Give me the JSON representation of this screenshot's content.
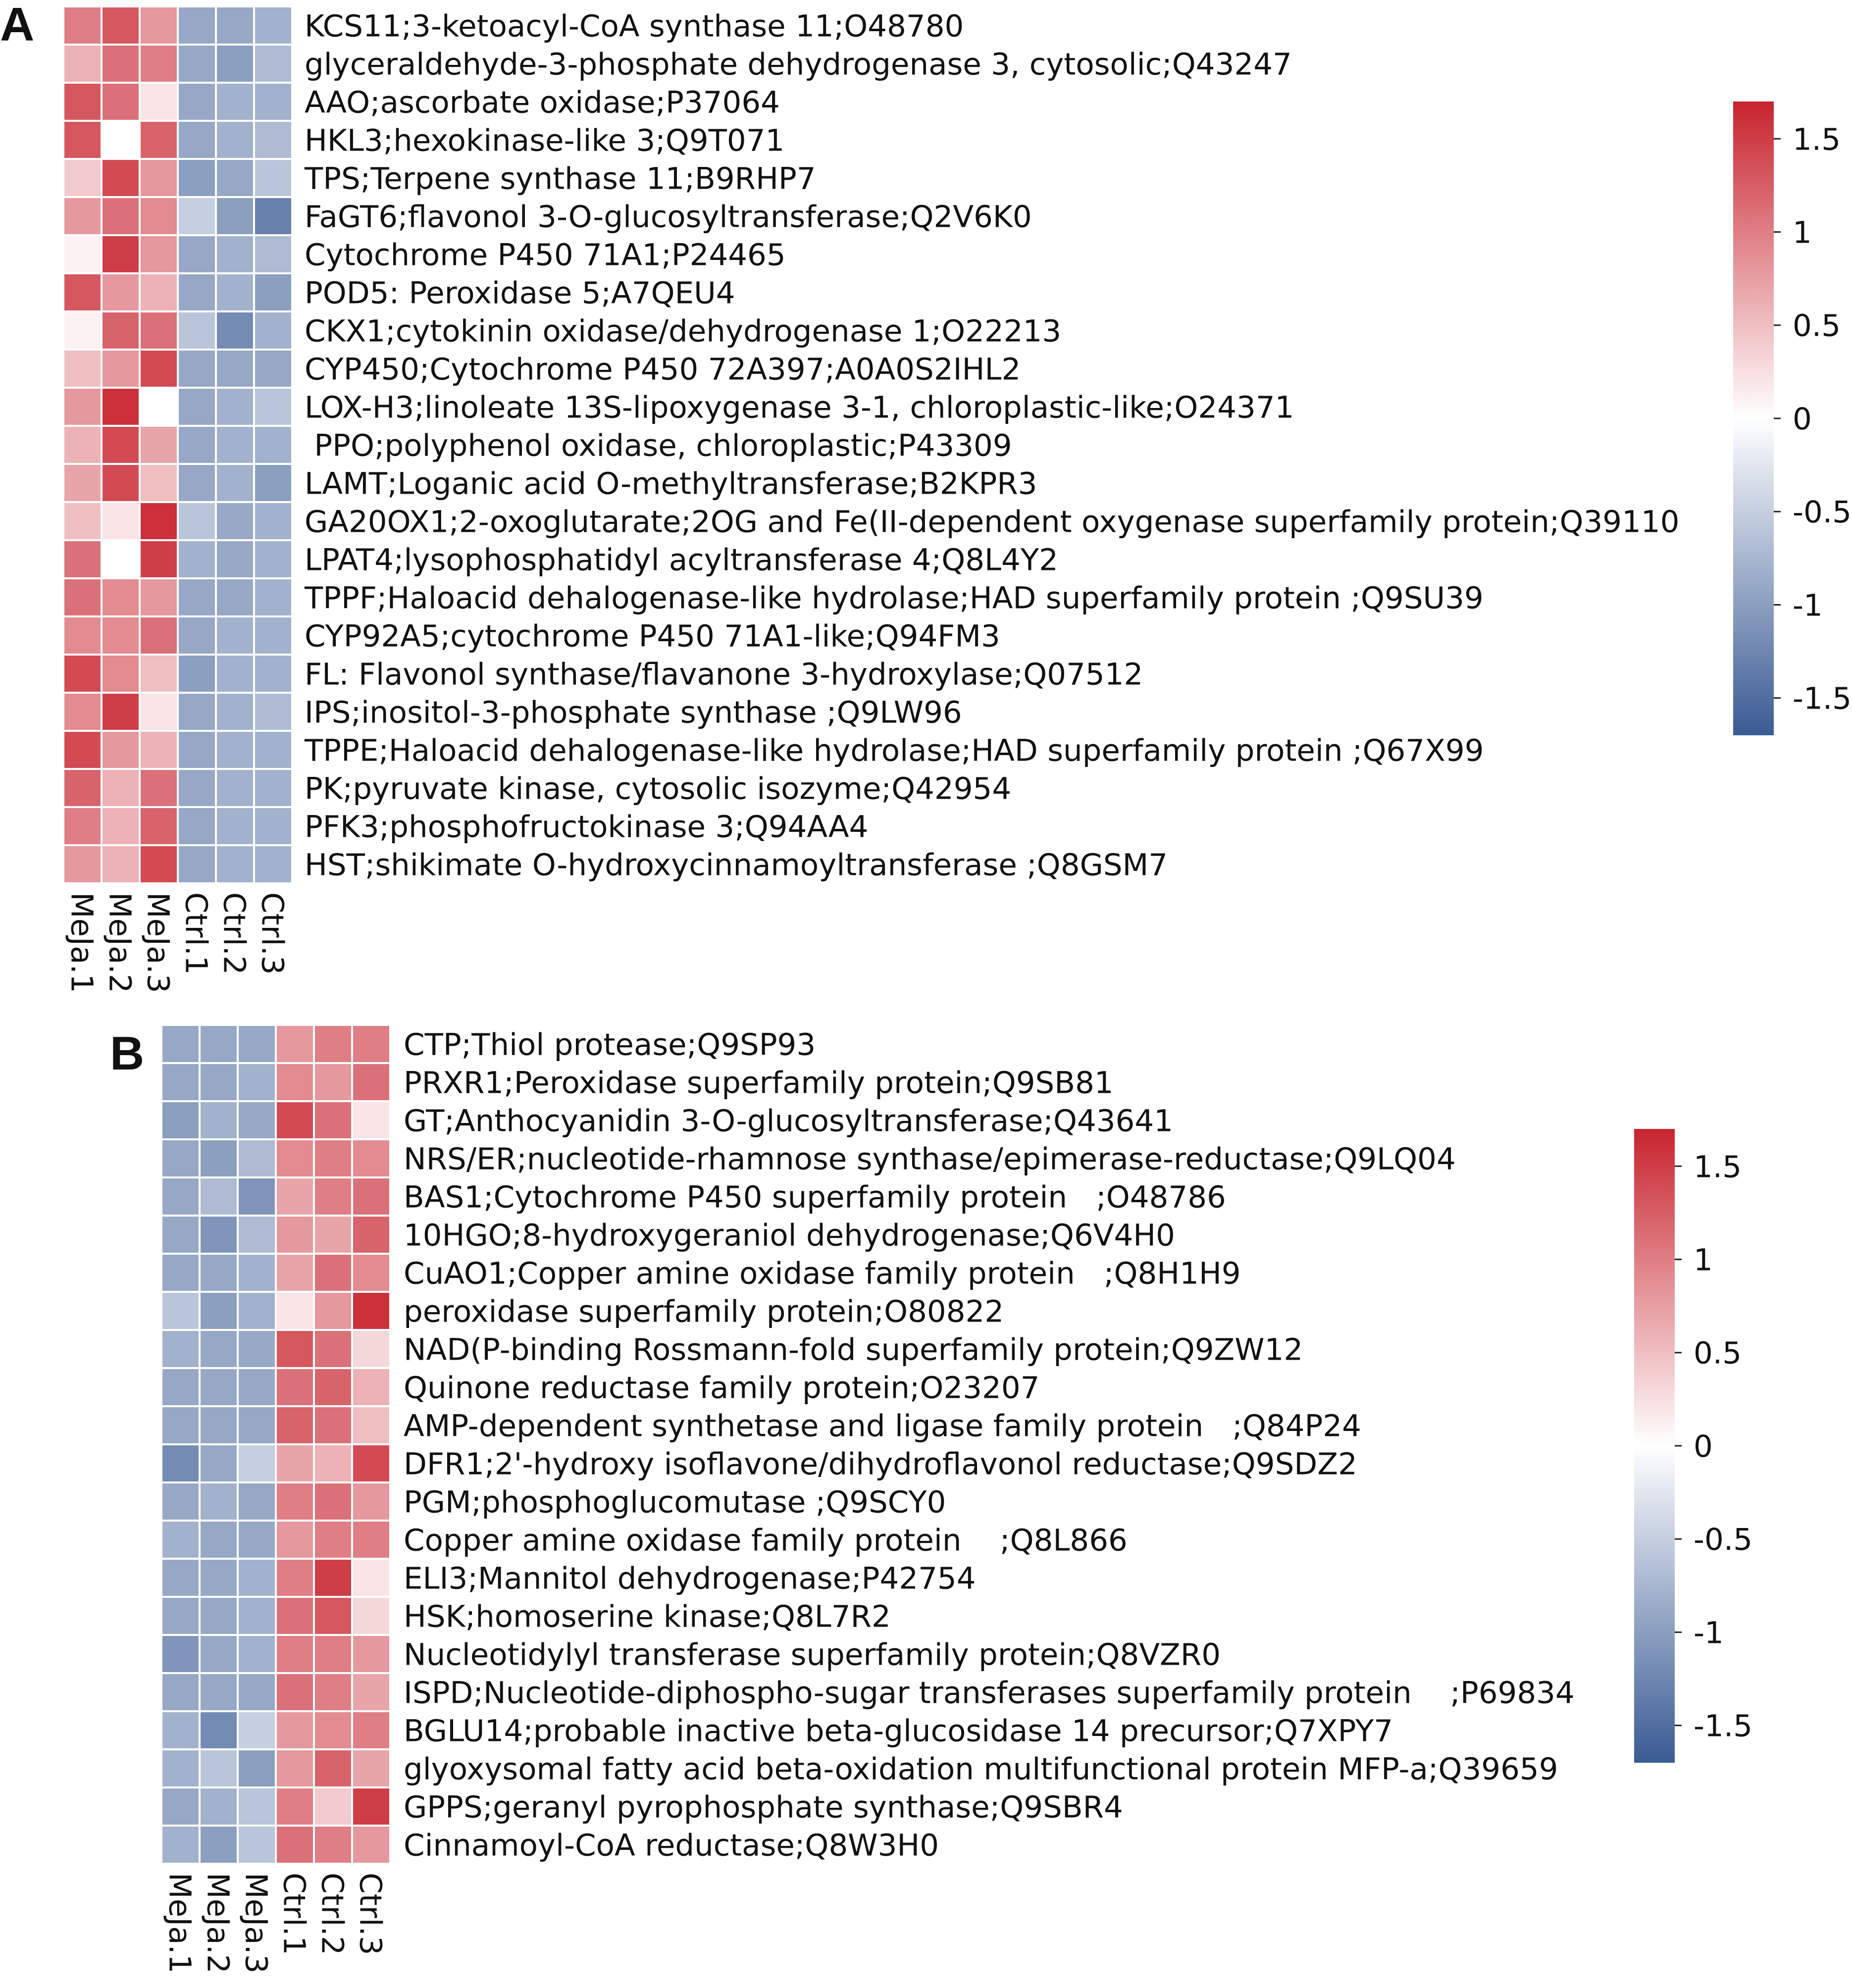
{
  "colors": {
    "low": "#3a5b93",
    "mid": "#ffffff",
    "high": "#c8242e"
  },
  "chart_data": [
    {
      "type": "heatmap",
      "panel_label": "A",
      "columns": [
        "MeJa.1",
        "MeJa.2",
        "MeJa.3",
        "Ctrl.1",
        "Ctrl.2",
        "Ctrl.3"
      ],
      "rows": [
        "KCS11;3-ketoacyl-CoA synthase 11;O48780",
        "glyceraldehyde-3-phosphate dehydrogenase 3, cytosolic;Q43247",
        "AAO;ascorbate oxidase;P37064",
        "HKL3;hexokinase-like 3;Q9T071",
        "TPS;Terpene synthase 11;B9RHP7",
        "FaGT6;flavonol 3-O-glucosyltransferase;Q2V6K0",
        "Cytochrome P450 71A1;P24465",
        "POD5: Peroxidase 5;A7QEU4",
        "CKX1;cytokinin oxidase/dehydrogenase 1;O22213",
        "CYP450;Cytochrome P450 72A397;A0A0S2IHL2",
        "LOX-H3;linoleate 13S-lipoxygenase 3-1, chloroplastic-like;O24371",
        " PPO;polyphenol oxidase, chloroplastic;P43309",
        "LAMT;Loganic acid O-methyltransferase;B2KPR3",
        "GA20OX1;2-oxoglutarate;2OG and Fe(II-dependent oxygenase superfamily protein;Q39110",
        "LPAT4;lysophosphatidyl acyltransferase 4;Q8L4Y2",
        "TPPF;Haloacid dehalogenase-like hydrolase;HAD superfamily protein ;Q9SU39",
        "CYP92A5;cytochrome P450 71A1-like;Q94FM3",
        "FL: Flavonol synthase/flavanone 3-hydroxylase;Q07512",
        "IPS;inositol-3-phosphate synthase ;Q9LW96",
        "TPPE;Haloacid dehalogenase-like hydrolase;HAD superfamily protein ;Q67X99",
        "PK;pyruvate kinase, cytosolic isozyme;Q42954",
        "PFK3;phosphofructokinase 3;Q94AA4",
        "HST;shikimate O-hydroxycinnamoyltransferase ;Q8GSM7"
      ],
      "values": [
        [
          1.0,
          1.3,
          0.8,
          -0.9,
          -0.9,
          -0.8
        ],
        [
          0.6,
          1.1,
          1.0,
          -0.9,
          -1.0,
          -0.7
        ],
        [
          1.3,
          1.1,
          0.2,
          -0.9,
          -0.8,
          -0.8
        ],
        [
          1.3,
          0.0,
          1.2,
          -0.9,
          -0.8,
          -0.7
        ],
        [
          0.4,
          1.4,
          0.8,
          -1.0,
          -0.9,
          -0.6
        ],
        [
          0.8,
          1.1,
          0.9,
          -0.5,
          -1.0,
          -1.3
        ],
        [
          0.1,
          1.5,
          0.8,
          -0.9,
          -0.8,
          -0.7
        ],
        [
          1.3,
          0.8,
          0.6,
          -0.9,
          -0.8,
          -1.0
        ],
        [
          0.1,
          1.2,
          1.1,
          -0.6,
          -1.2,
          -0.8
        ],
        [
          0.5,
          0.8,
          1.4,
          -0.9,
          -0.9,
          -0.9
        ],
        [
          0.8,
          1.6,
          0.0,
          -0.9,
          -0.8,
          -0.6
        ],
        [
          0.6,
          1.4,
          0.7,
          -0.9,
          -0.8,
          -0.8
        ],
        [
          0.7,
          1.4,
          0.5,
          -0.9,
          -0.8,
          -1.0
        ],
        [
          0.5,
          0.2,
          1.6,
          -0.6,
          -0.9,
          -0.8
        ],
        [
          1.1,
          0.0,
          1.5,
          -0.8,
          -0.9,
          -0.8
        ],
        [
          1.1,
          0.9,
          0.8,
          -0.9,
          -0.9,
          -0.8
        ],
        [
          0.9,
          0.9,
          1.1,
          -0.9,
          -0.8,
          -0.8
        ],
        [
          1.4,
          0.9,
          0.5,
          -1.0,
          -0.8,
          -0.8
        ],
        [
          0.9,
          1.5,
          0.2,
          -0.9,
          -0.8,
          -0.7
        ],
        [
          1.4,
          0.8,
          0.6,
          -0.9,
          -0.8,
          -0.8
        ],
        [
          1.2,
          0.6,
          1.1,
          -0.9,
          -0.8,
          -0.8
        ],
        [
          1.0,
          0.6,
          1.2,
          -0.9,
          -0.8,
          -0.8
        ],
        [
          0.8,
          0.6,
          1.4,
          -0.9,
          -0.8,
          -0.8
        ]
      ],
      "legend": {
        "ticks": [
          "1.5",
          "1",
          "0.5",
          "0",
          "-0.5",
          "-1",
          "-1.5"
        ],
        "tick_values": [
          1.5,
          1,
          0.5,
          0,
          -0.5,
          -1,
          -1.5
        ],
        "range": [
          -1.7,
          1.7
        ]
      }
    },
    {
      "type": "heatmap",
      "panel_label": "B",
      "columns": [
        "MeJa.1",
        "MeJa.2",
        "MeJa.3",
        "Ctrl.1",
        "Ctrl.2",
        "Ctrl.3"
      ],
      "rows": [
        "CTP;Thiol protease;Q9SP93",
        "PRXR1;Peroxidase superfamily protein;Q9SB81",
        "GT;Anthocyanidin 3-O-glucosyltransferase;Q43641",
        "NRS/ER;nucleotide-rhamnose synthase/epimerase-reductase;Q9LQ04",
        "BAS1;Cytochrome P450 superfamily protein   ;O48786",
        "10HGO;8-hydroxygeraniol dehydrogenase;Q6V4H0",
        "CuAO1;Copper amine oxidase family protein   ;Q8H1H9",
        "peroxidase superfamily protein;O80822",
        "NAD(P-binding Rossmann-fold superfamily protein;Q9ZW12",
        "Quinone reductase family protein;O23207",
        "AMP-dependent synthetase and ligase family protein   ;Q84P24",
        "DFR1;2'-hydroxy isoflavone/dihydroflavonol reductase;Q9SDZ2",
        "PGM;phosphoglucomutase ;Q9SCY0",
        "Copper amine oxidase family protein    ;Q8L866",
        "ELI3;Mannitol dehydrogenase;P42754",
        "HSK;homoserine kinase;Q8L7R2",
        "Nucleotidylyl transferase superfamily protein;Q8VZR0",
        "ISPD;Nucleotide-diphospho-sugar transferases superfamily protein    ;P69834",
        "BGLU14;probable inactive beta-glucosidase 14 precursor;Q7XPY7",
        "glyoxysomal fatty acid beta-oxidation multifunctional protein MFP-a;Q39659",
        "GPPS;geranyl pyrophosphate synthase;Q9SBR4",
        "Cinnamoyl-CoA reductase;Q8W3H0"
      ],
      "values": [
        [
          -0.9,
          -0.9,
          -0.9,
          0.8,
          1.0,
          1.0
        ],
        [
          -0.9,
          -0.9,
          -0.8,
          0.9,
          0.8,
          1.1
        ],
        [
          -1.0,
          -0.8,
          -0.9,
          1.4,
          1.1,
          0.2
        ],
        [
          -0.9,
          -1.0,
          -0.7,
          0.9,
          1.0,
          0.9
        ],
        [
          -0.9,
          -0.7,
          -1.1,
          0.7,
          1.0,
          1.1
        ],
        [
          -0.9,
          -1.1,
          -0.7,
          0.8,
          0.7,
          1.2
        ],
        [
          -0.9,
          -0.9,
          -0.8,
          0.7,
          1.1,
          0.9
        ],
        [
          -0.6,
          -1.0,
          -0.8,
          0.2,
          0.8,
          1.6
        ],
        [
          -0.8,
          -0.9,
          -0.9,
          1.3,
          1.1,
          0.3
        ],
        [
          -0.9,
          -0.9,
          -0.9,
          1.1,
          1.2,
          0.6
        ],
        [
          -0.9,
          -0.9,
          -0.9,
          1.2,
          1.1,
          0.5
        ],
        [
          -1.2,
          -0.9,
          -0.5,
          0.7,
          0.6,
          1.4
        ],
        [
          -0.9,
          -0.8,
          -0.9,
          1.0,
          1.1,
          0.8
        ],
        [
          -0.8,
          -0.9,
          -0.9,
          0.8,
          1.0,
          1.0
        ],
        [
          -0.9,
          -0.9,
          -0.8,
          1.0,
          1.5,
          0.2
        ],
        [
          -0.9,
          -0.9,
          -0.8,
          1.1,
          1.3,
          0.3
        ],
        [
          -1.1,
          -0.9,
          -0.8,
          1.0,
          1.0,
          0.8
        ],
        [
          -0.9,
          -0.9,
          -0.9,
          1.1,
          1.0,
          0.7
        ],
        [
          -0.8,
          -1.2,
          -0.5,
          0.8,
          0.9,
          1.0
        ],
        [
          -0.8,
          -0.6,
          -1.0,
          0.8,
          1.2,
          0.7
        ],
        [
          -0.9,
          -0.8,
          -0.6,
          1.0,
          0.4,
          1.5
        ],
        [
          -0.8,
          -1.0,
          -0.6,
          1.1,
          1.0,
          0.8
        ]
      ],
      "legend": {
        "ticks": [
          "1.5",
          "1",
          "0.5",
          "0",
          "-0.5",
          "-1",
          "-1.5"
        ],
        "tick_values": [
          1.5,
          1,
          0.5,
          0,
          -0.5,
          -1,
          -1.5
        ],
        "range": [
          -1.7,
          1.7
        ]
      }
    }
  ]
}
